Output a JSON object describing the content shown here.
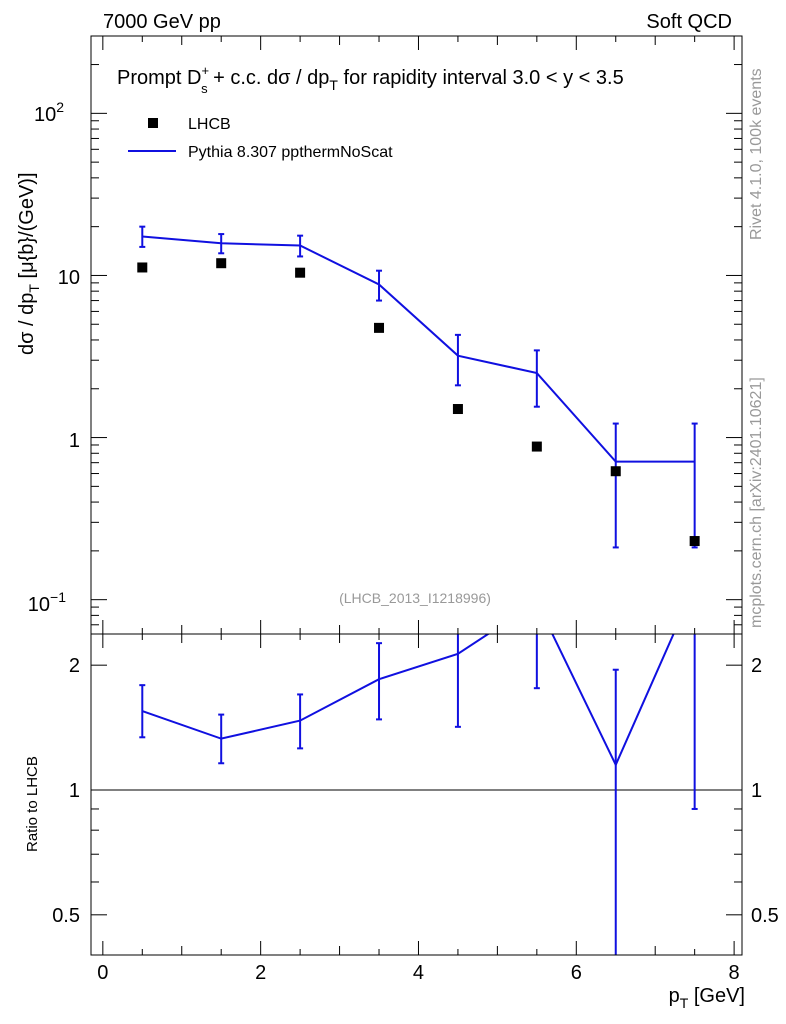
{
  "header": {
    "left": "7000 GeV pp",
    "right": "Soft QCD"
  },
  "side": {
    "rivet": "Rivet 4.1.0,  100k events",
    "mcplots": "mcplots.cern.ch [arXiv:2401.10621]"
  },
  "colors": {
    "mc": "#1010e0",
    "data": "#000000",
    "watermark": "#999999"
  },
  "chart_data": {
    "type": "scatter",
    "title": "Prompt D_s^+ + c.c.  dσ / dp_T for rapidity interval 3.0 < y < 3.5",
    "title_parts": {
      "prefix": "Prompt D",
      "sup": "+",
      "sub": "s",
      "mid": " + c.c.  dσ / dp",
      "sub2": "T",
      "suffix": " for rapidity interval 3.0 < y < 3.5"
    },
    "analysis_id": "(LHCB_2013_I1218996)",
    "ylabel": {
      "a": "dσ / dp",
      "sub": "T",
      "b": " [μ{b}/(GeV)]"
    },
    "xlabel": {
      "a": "p",
      "sub": "T",
      "b": " [GeV]"
    },
    "ratio_ylabel": "Ratio to LHCB",
    "xlim": [
      -0.15,
      8.1
    ],
    "ylim": [
      0.065,
      300
    ],
    "yscale": "log",
    "ratio_ylim": [
      0.4,
      2.3
    ],
    "x_ticks": [
      "0",
      "2",
      "4",
      "6",
      "8"
    ],
    "y_tick_labels": {
      "t0": "10",
      "t0_exp": "−1",
      "t1": "1",
      "t2": "10",
      "t3": "10",
      "t3_exp": "2"
    },
    "ratio_ticks": [
      "0.5",
      "1",
      "2"
    ],
    "legend": {
      "data_label": "LHCB",
      "mc_label": "Pythia 8.307 ppthermNoScat",
      "placement": "top-left"
    },
    "series": [
      {
        "name": "LHCB",
        "kind": "data",
        "x": [
          0.5,
          1.5,
          2.5,
          3.5,
          4.5,
          5.5,
          6.5,
          7.5
        ],
        "y": [
          11.2,
          11.9,
          10.4,
          4.75,
          1.5,
          0.88,
          0.62,
          0.23
        ]
      },
      {
        "name": "Pythia 8.307 ppthermNoScat",
        "kind": "mc",
        "x": [
          0.5,
          1.5,
          2.5,
          3.5,
          4.5,
          5.5,
          6.5,
          7.5
        ],
        "y": [
          17.4,
          15.8,
          15.3,
          8.8,
          3.2,
          2.5,
          0.71,
          0.71
        ],
        "err_low": [
          15.0,
          13.7,
          13.1,
          7.0,
          2.1,
          1.55,
          0.21,
          0.21
        ],
        "err_high": [
          20.0,
          18.0,
          17.6,
          10.7,
          4.3,
          3.45,
          1.22,
          1.22
        ],
        "xbins": [
          [
            0,
            1
          ],
          [
            1,
            2
          ],
          [
            2,
            3
          ],
          [
            3,
            4
          ],
          [
            4,
            5
          ],
          [
            5,
            6
          ],
          [
            6,
            7
          ],
          [
            7,
            8
          ]
        ]
      }
    ],
    "ratio": {
      "x": [
        0.5,
        1.5,
        2.5,
        3.5,
        4.5,
        5.5,
        6.5,
        7.5
      ],
      "y": [
        1.55,
        1.33,
        1.47,
        1.85,
        2.13,
        2.84,
        1.15,
        3.1
      ],
      "err_low": [
        1.34,
        1.16,
        1.26,
        1.48,
        1.42,
        1.76,
        0.35,
        0.9
      ],
      "err_high": [
        1.79,
        1.52,
        1.7,
        2.26,
        2.88,
        3.9,
        1.95,
        5.3
      ]
    }
  }
}
